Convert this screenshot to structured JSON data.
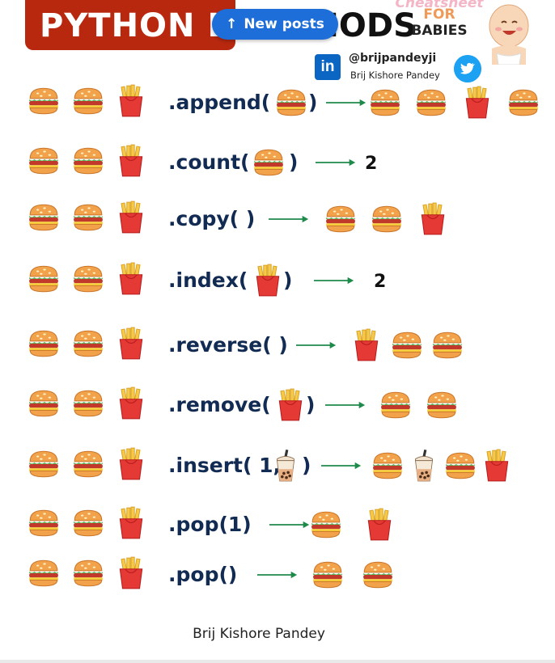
{
  "header": {
    "title_part1": "PYTHON LIST",
    "title_part2": "METHODS",
    "cheatsheet": "Cheatsheet",
    "for": "FOR",
    "babies": "BABIES",
    "handle": "@brijpandeyji",
    "name": "Brij Kishore Pandey",
    "linkedin_letters": "in"
  },
  "notification": {
    "label": "New posts",
    "arrow": "↑"
  },
  "rows": [
    {
      "method": ".append(",
      "arg": "burger",
      "close": ")",
      "result_icons": [
        "burger",
        "burger",
        "fries",
        "burger"
      ]
    },
    {
      "method": ".count(",
      "arg": "burger",
      "close": ")",
      "result_text": "2"
    },
    {
      "method": ".copy( )",
      "result_icons": [
        "burger",
        "burger",
        "fries"
      ]
    },
    {
      "method": ".index(",
      "arg": "fries",
      "close": ")",
      "result_text": "2"
    },
    {
      "method": ".reverse( )",
      "result_icons": [
        "fries",
        "burger",
        "burger"
      ]
    },
    {
      "method": ".remove(",
      "arg": "fries",
      "close": ")",
      "result_icons": [
        "burger",
        "burger"
      ]
    },
    {
      "method": ".insert( 1,",
      "arg": "boba",
      "close": ")",
      "result_icons": [
        "burger",
        "boba",
        "burger",
        "fries"
      ]
    },
    {
      "method": ".pop(1)",
      "result_icons": [
        "burger",
        "fries"
      ]
    },
    {
      "method": ".pop()",
      "result_icons": [
        "burger",
        "burger"
      ]
    }
  ],
  "input_list": [
    "burger",
    "burger",
    "fries"
  ],
  "footer": "Brij Kishore Pandey",
  "colors": {
    "banner": "#b8280f",
    "method_text": "#122b53",
    "arrow": "#1e8a4a",
    "new_posts": "#1d6ed8",
    "linkedin": "#0a66c2",
    "twitter": "#1da1f2"
  }
}
